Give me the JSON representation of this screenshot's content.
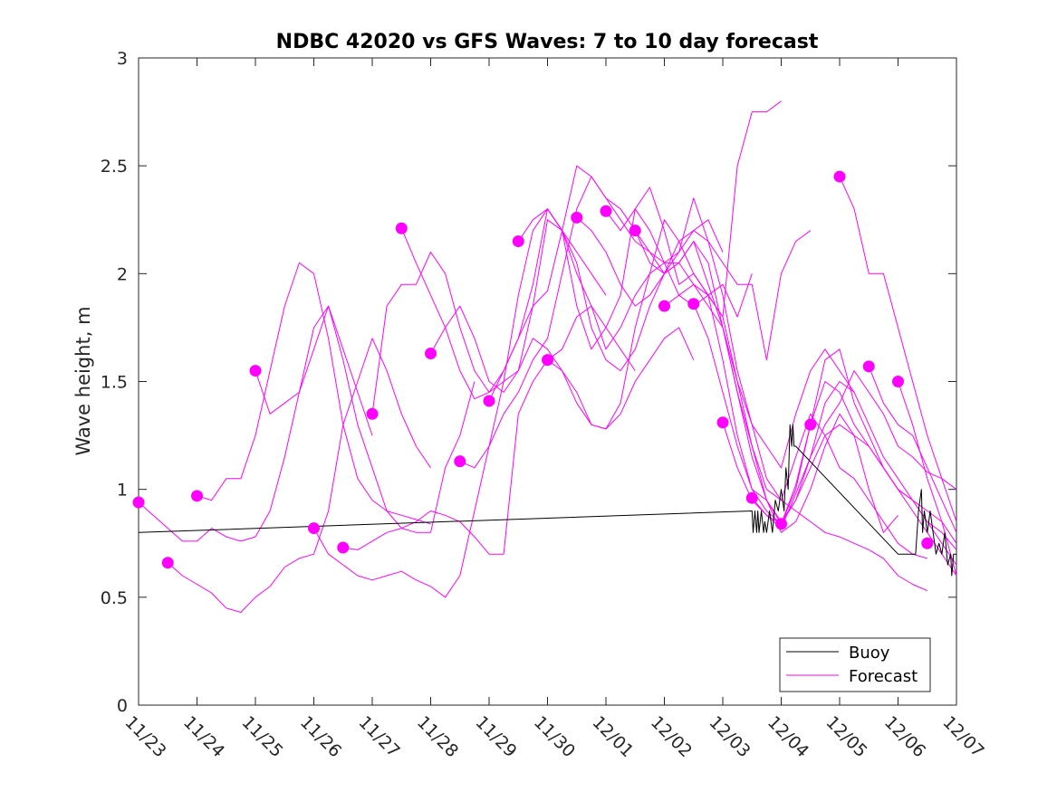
{
  "chart_data": {
    "type": "line",
    "title": "NDBC 42020 vs GFS Waves: 7 to 10 day forecast",
    "xlabel": "",
    "ylabel": "Wave height, m",
    "xlim": [
      0,
      14
    ],
    "ylim": [
      0,
      3
    ],
    "x_tick_labels": [
      "11/23",
      "11/24",
      "11/25",
      "11/26",
      "11/27",
      "11/28",
      "11/29",
      "11/30",
      "12/01",
      "12/02",
      "12/03",
      "12/04",
      "12/05",
      "12/06",
      "12/07"
    ],
    "y_ticks": [
      0,
      0.5,
      1,
      1.5,
      2,
      2.5,
      3
    ],
    "y_tick_labels": [
      "0",
      "0.5",
      "1",
      "1.5",
      "2",
      "2.5",
      "3"
    ],
    "x_units": "days since 11/23 00:00",
    "legend": {
      "location": "bottom-right",
      "entries": [
        {
          "label": "Buoy",
          "color": "#000000"
        },
        {
          "label": "Forecast",
          "color": "#ff00ff"
        }
      ]
    },
    "series": [
      {
        "name": "Buoy",
        "color": "#000000",
        "x": [
          0,
          10.5,
          10.52,
          10.55,
          10.58,
          10.6,
          10.62,
          10.66,
          10.7,
          10.72,
          10.75,
          10.8,
          10.85,
          10.9,
          10.95,
          11.0,
          11.05,
          11.08,
          11.12,
          11.15,
          11.18,
          11.2,
          11.22,
          11.25,
          13.0,
          13.3,
          13.35,
          13.4,
          13.42,
          13.45,
          13.5,
          13.55,
          13.6,
          13.65,
          13.7,
          13.75,
          13.8,
          13.85,
          13.9,
          13.92,
          13.95,
          14.0
        ],
        "y": [
          0.8,
          0.9,
          0.8,
          0.9,
          0.8,
          0.9,
          0.8,
          0.9,
          0.8,
          0.85,
          0.8,
          0.9,
          0.8,
          0.95,
          0.9,
          1.0,
          0.9,
          1.1,
          1.0,
          1.3,
          1.2,
          1.3,
          1.2,
          1.2,
          0.7,
          0.7,
          0.9,
          1.0,
          0.8,
          0.9,
          0.8,
          0.9,
          0.8,
          0.7,
          0.75,
          0.7,
          0.8,
          0.65,
          0.7,
          0.6,
          0.7,
          0.7
        ]
      },
      {
        "name": "Forecast 1",
        "color": "#ff00ff",
        "x": [
          0,
          0.25,
          0.5,
          0.75,
          1.0,
          1.25,
          1.5,
          1.75,
          2.0,
          2.25,
          2.5,
          2.75,
          3.0,
          3.25,
          3.5,
          3.75,
          4.0
        ],
        "y": [
          0.94,
          0.88,
          0.82,
          0.76,
          0.76,
          0.82,
          0.78,
          0.76,
          0.78,
          0.9,
          1.15,
          1.45,
          1.65,
          1.85,
          1.65,
          1.45,
          1.25
        ]
      },
      {
        "name": "Forecast 2",
        "color": "#ff00ff",
        "x": [
          0.5,
          0.75,
          1.0,
          1.25,
          1.5,
          1.75,
          2.0,
          2.25,
          2.5,
          2.75,
          3.0,
          3.25,
          3.5,
          3.75,
          4.0,
          4.25,
          4.5,
          4.75,
          5.0
        ],
        "y": [
          0.66,
          0.6,
          0.56,
          0.52,
          0.45,
          0.43,
          0.5,
          0.55,
          0.64,
          0.68,
          0.7,
          0.9,
          1.3,
          1.5,
          1.7,
          1.55,
          1.35,
          1.2,
          1.1
        ]
      },
      {
        "name": "Forecast 3",
        "color": "#ff00ff",
        "x": [
          1.0,
          1.25,
          1.5,
          1.75,
          2.0,
          2.25,
          2.5,
          2.75,
          3.0,
          3.25,
          3.5,
          3.75,
          4.0,
          4.25,
          4.5,
          4.75,
          5.0
        ],
        "y": [
          0.97,
          0.95,
          1.05,
          1.05,
          1.25,
          1.55,
          1.85,
          2.05,
          2.0,
          1.7,
          1.3,
          1.05,
          0.95,
          0.9,
          0.88,
          0.86,
          0.84
        ]
      },
      {
        "name": "Forecast 4",
        "color": "#ff00ff",
        "x": [
          2.0,
          2.25,
          2.5,
          2.75,
          3.0,
          3.25,
          3.5,
          3.75,
          4.0,
          4.25,
          4.5,
          4.75,
          5.0,
          5.25,
          5.5,
          5.75
        ],
        "y": [
          1.55,
          1.35,
          1.4,
          1.45,
          1.75,
          1.85,
          1.6,
          1.3,
          1.1,
          0.9,
          0.82,
          0.8,
          0.8,
          1.1,
          1.25,
          1.5
        ]
      },
      {
        "name": "Forecast 5",
        "color": "#ff00ff",
        "x": [
          3.0,
          3.25,
          3.5,
          3.75,
          4.0,
          4.25,
          4.5,
          4.75,
          5.0,
          5.25,
          5.5,
          5.75,
          6.0,
          6.25,
          6.5,
          6.75,
          7.0,
          7.25,
          7.5,
          7.75,
          8.0
        ],
        "y": [
          0.82,
          0.7,
          0.65,
          0.6,
          0.58,
          0.6,
          0.62,
          0.58,
          0.55,
          0.5,
          0.6,
          0.9,
          1.2,
          1.5,
          1.9,
          2.2,
          2.3,
          2.2,
          2.1,
          2.0,
          1.9
        ]
      },
      {
        "name": "Forecast 6",
        "color": "#ff00ff",
        "x": [
          3.5,
          3.75,
          4.0,
          4.25,
          4.5,
          4.75,
          5.0,
          5.25,
          5.5,
          5.75,
          6.0,
          6.25,
          6.5,
          6.75,
          7.0,
          7.25,
          7.5,
          7.75,
          8.0,
          8.25,
          8.5
        ],
        "y": [
          0.73,
          0.72,
          0.76,
          0.8,
          0.82,
          0.85,
          0.9,
          0.88,
          0.85,
          0.78,
          0.7,
          0.7,
          1.35,
          1.5,
          1.6,
          1.65,
          1.8,
          1.85,
          1.75,
          1.65,
          1.55
        ]
      },
      {
        "name": "Forecast 7",
        "color": "#ff00ff",
        "x": [
          4.0,
          4.25,
          4.5,
          4.75,
          5.0,
          5.25,
          5.5,
          5.75,
          6.0,
          6.25,
          6.5,
          6.75,
          7.0,
          7.25,
          7.5,
          7.75,
          8.0,
          8.25,
          8.5,
          8.75,
          9.0,
          9.25,
          9.5
        ],
        "y": [
          1.35,
          1.85,
          1.95,
          1.95,
          2.1,
          2.0,
          1.75,
          1.55,
          1.45,
          1.5,
          1.55,
          1.7,
          1.65,
          1.55,
          1.4,
          1.3,
          1.28,
          1.35,
          1.5,
          1.6,
          1.7,
          1.75,
          1.6
        ]
      },
      {
        "name": "Forecast 8",
        "color": "#ff00ff",
        "x": [
          4.5,
          4.75,
          5.0,
          5.25,
          5.5,
          5.75,
          6.0,
          6.25,
          6.5,
          6.75,
          7.0,
          7.25,
          7.5,
          7.75,
          8.0,
          8.25,
          8.5,
          8.75,
          9.0,
          9.25,
          9.5,
          9.75,
          10.0
        ],
        "y": [
          2.21,
          2.05,
          1.9,
          1.75,
          1.55,
          1.42,
          1.45,
          1.55,
          1.7,
          1.85,
          1.92,
          2.2,
          2.5,
          2.45,
          2.35,
          2.25,
          2.15,
          2.1,
          2.05,
          2.1,
          2.2,
          2.25,
          2.1
        ]
      },
      {
        "name": "Forecast 9",
        "color": "#ff00ff",
        "x": [
          5.0,
          5.25,
          5.5,
          5.75,
          6.0,
          6.25,
          6.5,
          6.75,
          7.0,
          7.25,
          7.5,
          7.75,
          8.0,
          8.25,
          8.5,
          8.75,
          9.0,
          9.25,
          9.5,
          9.75,
          10.0,
          10.25,
          10.5
        ],
        "y": [
          1.63,
          1.75,
          1.85,
          1.7,
          1.5,
          1.45,
          1.55,
          1.85,
          2.25,
          2.2,
          2.0,
          1.85,
          1.65,
          1.75,
          1.9,
          2.0,
          2.05,
          1.9,
          1.85,
          1.9,
          1.95,
          1.8,
          2.0
        ]
      },
      {
        "name": "Forecast 10",
        "color": "#ff00ff",
        "x": [
          5.5,
          5.75,
          6.0,
          6.25,
          6.5,
          6.75,
          7.0,
          7.25,
          7.5,
          7.75,
          8.0,
          8.25,
          8.5,
          8.75,
          9.0,
          9.25,
          9.5,
          9.75,
          10.0,
          10.25,
          10.5,
          10.75,
          11.0,
          11.25,
          11.5
        ],
        "y": [
          1.13,
          1.1,
          1.2,
          1.35,
          1.45,
          1.6,
          1.7,
          2.0,
          2.3,
          2.45,
          2.35,
          2.3,
          2.2,
          2.1,
          2.0,
          2.15,
          2.2,
          2.15,
          2.05,
          1.95,
          1.95,
          1.6,
          2.0,
          2.15,
          2.2
        ]
      },
      {
        "name": "Forecast 11",
        "color": "#ff00ff",
        "x": [
          6.0,
          6.25,
          6.5,
          6.75,
          7.0,
          7.25,
          7.5,
          7.75,
          8.0,
          8.25,
          8.5,
          8.75,
          9.0,
          9.25,
          9.5,
          9.75,
          10.0,
          10.25,
          10.5,
          10.75,
          11.0
        ],
        "y": [
          1.41,
          1.55,
          1.7,
          1.95,
          2.3,
          2.2,
          1.85,
          1.65,
          1.75,
          1.9,
          2.3,
          2.4,
          2.2,
          1.95,
          2.0,
          1.9,
          1.8,
          2.5,
          2.75,
          2.75,
          2.8
        ]
      },
      {
        "name": "Forecast 12",
        "color": "#ff00ff",
        "x": [
          6.5,
          6.75,
          7.0,
          7.25,
          7.5,
          7.75,
          8.0,
          8.25,
          8.5,
          8.75,
          9.0,
          9.25,
          9.5,
          9.75,
          10.0,
          10.25,
          10.5,
          10.75,
          11.0,
          11.25,
          11.5,
          11.75,
          12.0,
          12.25
        ],
        "y": [
          2.15,
          2.25,
          2.3,
          2.2,
          2.05,
          1.75,
          1.6,
          1.55,
          1.65,
          1.85,
          2.0,
          2.05,
          1.95,
          1.85,
          1.75,
          1.5,
          1.3,
          1.2,
          1.1,
          1.35,
          1.55,
          1.65,
          1.55,
          1.45
        ]
      },
      {
        "name": "Forecast 13",
        "color": "#ff00ff",
        "x": [
          7.0,
          7.25,
          7.5,
          7.75,
          8.0,
          8.25,
          8.5,
          8.75,
          9.0,
          9.25,
          9.5,
          9.75,
          10.0,
          10.25,
          10.5,
          10.75,
          11.0,
          11.25,
          11.5,
          11.75,
          12.0,
          12.25,
          12.5,
          12.75,
          13.0,
          13.25,
          13.5
        ],
        "y": [
          1.6,
          1.55,
          1.45,
          1.3,
          1.28,
          1.4,
          1.75,
          2.0,
          2.25,
          2.15,
          2.0,
          1.9,
          1.8,
          1.5,
          1.2,
          1.0,
          0.95,
          1.15,
          1.35,
          1.25,
          1.1,
          1.05,
          0.95,
          0.85,
          0.75,
          0.7,
          0.68
        ]
      },
      {
        "name": "Forecast 14",
        "color": "#ff00ff",
        "x": [
          7.5,
          7.75,
          8.0,
          8.25,
          8.5,
          8.75,
          9.0,
          9.25,
          9.5,
          9.75,
          10.0,
          10.25,
          10.5,
          10.75,
          11.0,
          11.25,
          11.5,
          11.75,
          12.0,
          12.25,
          12.5,
          12.75,
          13.0,
          13.25,
          13.5
        ],
        "y": [
          2.26,
          2.2,
          2.1,
          1.95,
          1.85,
          1.9,
          2.0,
          2.1,
          2.35,
          2.15,
          1.9,
          1.55,
          1.3,
          1.05,
          0.95,
          0.9,
          0.85,
          0.8,
          0.78,
          0.75,
          0.72,
          0.68,
          0.6,
          0.56,
          0.53
        ]
      },
      {
        "name": "Forecast 15",
        "color": "#ff00ff",
        "x": [
          8.0,
          8.25,
          8.5,
          8.75,
          9.0,
          9.25,
          9.5,
          9.75,
          10.0,
          10.25,
          10.5,
          10.75,
          11.0,
          11.25,
          11.5,
          11.75,
          12.0,
          12.25,
          12.5,
          12.75,
          13.0,
          13.25,
          13.5,
          13.75,
          14.0
        ],
        "y": [
          2.29,
          2.2,
          2.3,
          2.2,
          2.05,
          2.05,
          2.15,
          2.05,
          1.75,
          1.45,
          1.2,
          0.95,
          0.8,
          0.85,
          1.0,
          1.2,
          1.35,
          1.25,
          1.2,
          1.1,
          1.0,
          0.95,
          0.9,
          0.85,
          0.75
        ]
      },
      {
        "name": "Forecast 16",
        "color": "#ff00ff",
        "x": [
          8.5,
          8.75,
          9.0,
          9.25,
          9.5,
          9.75,
          10.0,
          10.25,
          10.5,
          10.75,
          11.0,
          11.25,
          11.5,
          11.75,
          12.0,
          12.25,
          12.5,
          12.75,
          13.0,
          13.25,
          13.5,
          13.75,
          14.0
        ],
        "y": [
          2.2,
          2.05,
          2.0,
          2.05,
          2.15,
          1.95,
          1.75,
          1.45,
          1.15,
          0.95,
          0.85,
          0.95,
          1.15,
          1.4,
          1.5,
          1.45,
          1.3,
          1.15,
          1.05,
          0.95,
          0.85,
          0.8,
          0.72
        ]
      },
      {
        "name": "Forecast 17",
        "color": "#ff00ff",
        "x": [
          9.0,
          9.25,
          9.5,
          9.75,
          10.0,
          10.25,
          10.5,
          10.75,
          11.0,
          11.25,
          11.5,
          11.75,
          12.0,
          12.25,
          12.5,
          12.75,
          13.0,
          13.25,
          13.5,
          13.75,
          14.0
        ],
        "y": [
          1.85,
          1.9,
          1.95,
          1.9,
          1.6,
          1.25,
          1.0,
          0.9,
          0.84,
          1.0,
          1.3,
          1.6,
          1.65,
          1.4,
          1.25,
          1.1,
          1.0,
          0.95,
          0.85,
          0.75,
          0.65
        ]
      },
      {
        "name": "Forecast 18",
        "color": "#ff00ff",
        "x": [
          9.5,
          9.75,
          10.0,
          10.25,
          10.5,
          10.75,
          11.0,
          11.25,
          11.5,
          11.75,
          12.0,
          12.25,
          12.5,
          12.75,
          13.0,
          13.25,
          13.5,
          13.75,
          14.0
        ],
        "y": [
          1.86,
          1.7,
          1.45,
          1.2,
          1.0,
          0.95,
          0.84,
          1.02,
          1.3,
          1.5,
          1.45,
          1.3,
          1.2,
          1.1,
          1.0,
          0.9,
          0.8,
          0.7,
          0.6
        ]
      },
      {
        "name": "Forecast 19",
        "color": "#ff00ff",
        "x": [
          10.0,
          10.25,
          10.5,
          10.75,
          11.0,
          11.25,
          11.5,
          11.75,
          12.0,
          12.25,
          12.5,
          12.75,
          13.0
        ],
        "y": [
          1.31,
          1.1,
          0.95,
          0.88,
          0.84,
          0.95,
          1.1,
          1.25,
          1.3,
          1.25,
          1.0,
          0.8,
          0.88
        ]
      },
      {
        "name": "Forecast 20",
        "color": "#ff00ff",
        "x": [
          10.5,
          10.75,
          11.0,
          11.25,
          11.5,
          11.75,
          12.0,
          12.25,
          12.5,
          12.75,
          13.0,
          13.25,
          13.5,
          13.75,
          14.0
        ],
        "y": [
          0.96,
          0.88,
          0.82,
          0.98,
          1.15,
          1.3,
          1.4,
          1.55,
          1.45,
          1.35,
          1.2,
          1.15,
          1.08,
          1.05,
          1.0
        ]
      },
      {
        "name": "Forecast 21",
        "color": "#ff00ff",
        "x": [
          12.0,
          12.25,
          12.5,
          12.75,
          13.0,
          13.25,
          13.5,
          13.75,
          14.0
        ],
        "y": [
          2.45,
          2.3,
          2.0,
          2.0,
          1.75,
          1.5,
          1.25,
          1.05,
          0.85
        ]
      },
      {
        "name": "Forecast 22",
        "color": "#ff00ff",
        "x": [
          12.5,
          12.75,
          13.0,
          13.25,
          13.5,
          13.75,
          14.0
        ],
        "y": [
          1.57,
          1.4,
          1.3,
          1.25,
          1.1,
          0.95,
          0.8
        ]
      },
      {
        "name": "Forecast 23",
        "color": "#ff00ff",
        "x": [
          13.0,
          13.25,
          13.5,
          13.75,
          14.0
        ],
        "y": [
          1.5,
          1.3,
          1.05,
          0.85,
          0.6
        ]
      }
    ],
    "markers": {
      "color": "#ff00ff",
      "x": [
        0,
        0.5,
        1.0,
        2.0,
        3.0,
        3.5,
        4.0,
        4.5,
        5.0,
        5.5,
        6.0,
        6.5,
        7.0,
        7.5,
        8.0,
        8.5,
        9.0,
        9.5,
        10.0,
        10.5,
        11.0,
        11.5,
        12.0,
        12.5,
        13.0,
        13.5
      ],
      "y": [
        0.94,
        0.66,
        0.97,
        1.55,
        0.82,
        0.73,
        1.35,
        2.21,
        1.63,
        1.13,
        1.41,
        2.15,
        1.6,
        2.26,
        2.29,
        2.2,
        1.85,
        1.86,
        1.31,
        0.96,
        0.84,
        1.3,
        2.45,
        1.57,
        1.5,
        0.75
      ]
    }
  }
}
